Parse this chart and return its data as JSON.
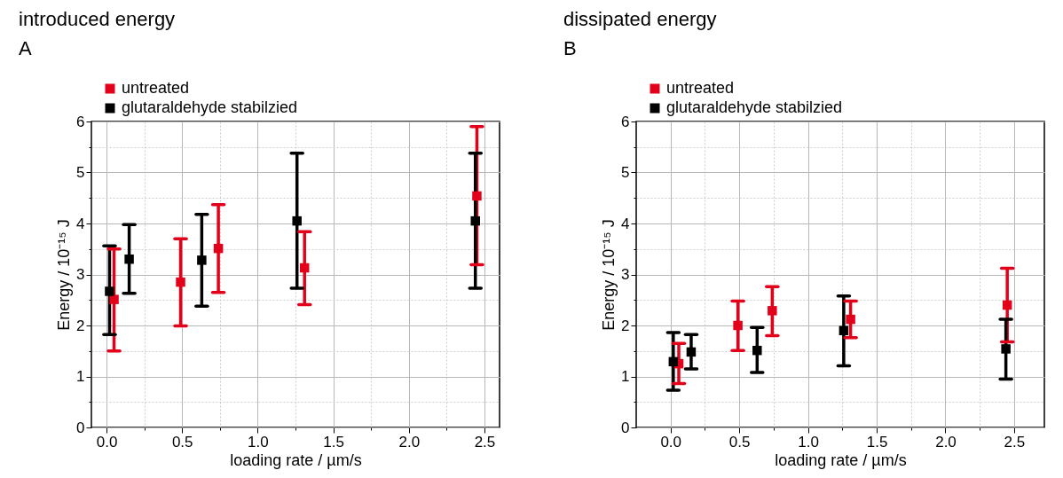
{
  "chart_data": [
    {
      "type": "scatter",
      "title": "introduced energy",
      "xlabel": "loading rate / µm/s",
      "ylabel": "Energy / 10⁻¹⁵ J",
      "annotations": [
        "A"
      ],
      "marker": "square",
      "grid": true,
      "legend": "top left",
      "xlim": [
        -0.1,
        2.6
      ],
      "ylim": [
        0,
        6
      ],
      "xticks": [
        {
          "value": 0,
          "label": "0.0"
        },
        {
          "value": 0.25,
          "label": null
        },
        {
          "value": 0.5,
          "label": "0.5"
        },
        {
          "value": 0.75,
          "label": null
        },
        {
          "value": 1,
          "label": "1.0"
        },
        {
          "value": 1.25,
          "label": null
        },
        {
          "value": 1.5,
          "label": "1.5"
        },
        {
          "value": 1.75,
          "label": null
        },
        {
          "value": 2,
          "label": "2.0"
        },
        {
          "value": 2.25,
          "label": null
        },
        {
          "value": 2.5,
          "label": "2.5"
        }
      ],
      "yticks": [
        0,
        {
          "value": 0.5,
          "label": null
        },
        1,
        {
          "value": 1.5,
          "label": null
        },
        2,
        {
          "value": 2.5,
          "label": null
        },
        3,
        {
          "value": 3.5,
          "label": null
        },
        4,
        {
          "value": 4.5,
          "label": null
        },
        5,
        {
          "value": 5.5,
          "label": null
        },
        6
      ],
      "series": [
        {
          "name": "untreated",
          "color": "#e2001a",
          "x": [
            0.05,
            0.49,
            0.74,
            1.31,
            2.45
          ],
          "values": [
            2.51,
            2.85,
            3.51,
            3.13,
            4.54
          ],
          "errors": [
            [
              1.5,
              3.5
            ],
            [
              1.99,
              3.7
            ],
            [
              2.65,
              4.37
            ],
            [
              2.41,
              3.84
            ],
            [
              3.19,
              5.9
            ]
          ]
        },
        {
          "name": "glutaraldehyde stabilzied",
          "color": "#000000",
          "x": [
            0.02,
            0.15,
            0.63,
            1.26,
            2.44
          ],
          "values": [
            2.67,
            3.3,
            3.28,
            4.05,
            4.05
          ],
          "errors": [
            [
              1.82,
              3.56
            ],
            [
              2.63,
              3.98
            ],
            [
              2.38,
              4.18
            ],
            [
              2.73,
              5.38
            ],
            [
              2.73,
              5.38
            ]
          ]
        }
      ]
    },
    {
      "type": "scatter",
      "title": "dissipated energy",
      "xlabel": "loading rate / µm/s",
      "ylabel": "Energy / 10⁻¹⁵ J",
      "annotations": [
        "B"
      ],
      "marker": "square",
      "grid": true,
      "legend": "top left",
      "xlim": [
        -0.25,
        2.72
      ],
      "ylim": [
        0,
        6
      ],
      "xticks": [
        {
          "value": 0,
          "label": "0.0"
        },
        {
          "value": 0.25,
          "label": null
        },
        {
          "value": 0.5,
          "label": "0.5"
        },
        {
          "value": 0.75,
          "label": null
        },
        {
          "value": 1,
          "label": "1.0"
        },
        {
          "value": 1.25,
          "label": null
        },
        {
          "value": 1.5,
          "label": "1.5"
        },
        {
          "value": 1.75,
          "label": null
        },
        {
          "value": 2,
          "label": "2.0"
        },
        {
          "value": 2.25,
          "label": null
        },
        {
          "value": 2.5,
          "label": "2.5"
        }
      ],
      "yticks": [
        0,
        {
          "value": 0.5,
          "label": null
        },
        1,
        {
          "value": 1.5,
          "label": null
        },
        2,
        {
          "value": 2.5,
          "label": null
        },
        3,
        {
          "value": 3.5,
          "label": null
        },
        4,
        {
          "value": 4.5,
          "label": null
        },
        5,
        {
          "value": 5.5,
          "label": null
        },
        6
      ],
      "series": [
        {
          "name": "untreated",
          "color": "#e2001a",
          "x": [
            0.06,
            0.49,
            0.74,
            1.31,
            2.45
          ],
          "values": [
            1.25,
            2.0,
            2.29,
            2.12,
            2.4
          ],
          "errors": [
            [
              0.86,
              1.65
            ],
            [
              1.51,
              2.48
            ],
            [
              1.8,
              2.76
            ],
            [
              1.76,
              2.48
            ],
            [
              1.68,
              3.12
            ]
          ]
        },
        {
          "name": "glutaraldehyde stabilzied",
          "color": "#000000",
          "x": [
            0.02,
            0.15,
            0.63,
            1.26,
            2.44
          ],
          "values": [
            1.29,
            1.48,
            1.51,
            1.9,
            1.54
          ],
          "errors": [
            [
              0.73,
              1.86
            ],
            [
              1.15,
              1.82
            ],
            [
              1.08,
              1.96
            ],
            [
              1.21,
              2.58
            ],
            [
              0.95,
              2.12
            ]
          ]
        }
      ]
    }
  ]
}
